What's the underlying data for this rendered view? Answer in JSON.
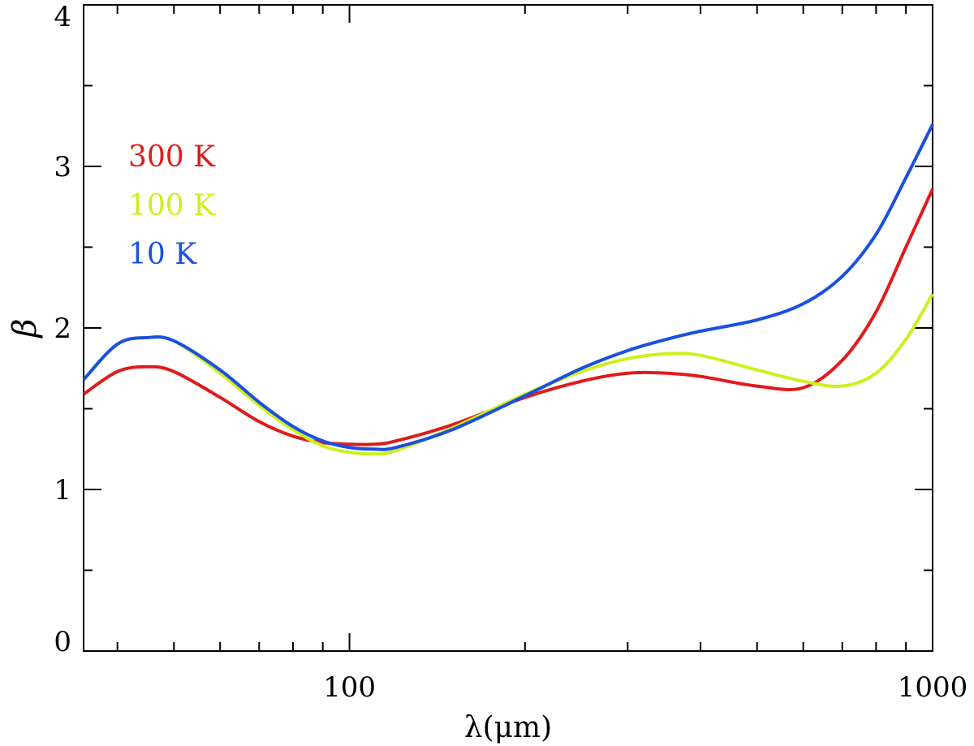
{
  "chart_data": {
    "type": "line",
    "title": "",
    "xlabel": "λ(μm)",
    "ylabel": "β",
    "xscale": "log",
    "xlim": [
      35,
      1000
    ],
    "ylim": [
      0,
      4
    ],
    "xticks_major": [
      {
        "value": 100,
        "label": "100"
      },
      {
        "value": 1000,
        "label": "1000"
      }
    ],
    "xticks_minor": [
      40,
      50,
      60,
      70,
      80,
      90,
      200,
      300,
      400,
      500,
      600,
      700,
      800,
      900
    ],
    "yticks": [
      {
        "value": 0,
        "label": "0"
      },
      {
        "value": 1,
        "label": "1"
      },
      {
        "value": 2,
        "label": "2"
      },
      {
        "value": 3,
        "label": "3"
      },
      {
        "value": 4,
        "label": "4"
      }
    ],
    "legend_position": "top-left",
    "series": [
      {
        "name": "300 K",
        "color": "#e01b1b",
        "x": [
          35,
          40,
          45,
          50,
          60,
          70,
          80,
          90,
          100,
          110,
          120,
          150,
          200,
          250,
          300,
          350,
          400,
          500,
          600,
          700,
          800,
          900,
          1000
        ],
        "y": [
          1.59,
          1.73,
          1.76,
          1.73,
          1.57,
          1.42,
          1.33,
          1.29,
          1.28,
          1.28,
          1.3,
          1.4,
          1.57,
          1.67,
          1.72,
          1.72,
          1.7,
          1.64,
          1.63,
          1.8,
          2.1,
          2.5,
          2.86
        ]
      },
      {
        "name": "100 K",
        "color": "#ccf01e",
        "x": [
          35,
          40,
          45,
          50,
          60,
          70,
          80,
          90,
          100,
          110,
          120,
          150,
          200,
          250,
          300,
          350,
          400,
          500,
          600,
          700,
          800,
          900,
          1000
        ],
        "y": [
          1.68,
          1.9,
          1.94,
          1.92,
          1.72,
          1.52,
          1.37,
          1.27,
          1.23,
          1.22,
          1.24,
          1.38,
          1.59,
          1.73,
          1.81,
          1.84,
          1.83,
          1.74,
          1.67,
          1.64,
          1.72,
          1.93,
          2.21
        ]
      },
      {
        "name": "10 K",
        "color": "#1a50e0",
        "x": [
          35,
          40,
          45,
          50,
          60,
          70,
          80,
          90,
          100,
          110,
          120,
          150,
          200,
          250,
          300,
          350,
          400,
          500,
          600,
          700,
          800,
          900,
          1000
        ],
        "y": [
          1.68,
          1.9,
          1.94,
          1.92,
          1.74,
          1.54,
          1.39,
          1.3,
          1.26,
          1.25,
          1.26,
          1.37,
          1.58,
          1.75,
          1.86,
          1.93,
          1.98,
          2.05,
          2.15,
          2.32,
          2.58,
          2.93,
          3.26
        ]
      }
    ]
  }
}
